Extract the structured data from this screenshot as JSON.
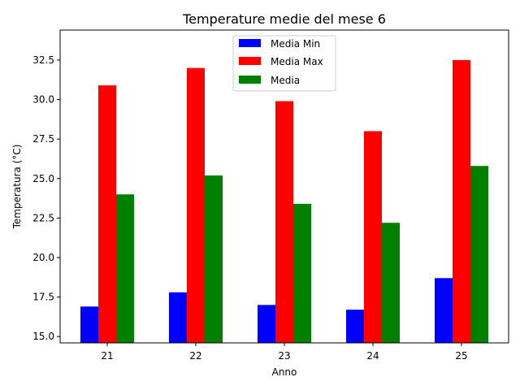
{
  "chart_data": {
    "type": "bar",
    "title": "Temperature medie del mese 6",
    "xlabel": "Anno",
    "ylabel": "Temperatura (°C)",
    "categories": [
      "21",
      "22",
      "23",
      "24",
      "25"
    ],
    "series": [
      {
        "name": "Media Min",
        "color": "#0000ff",
        "values": [
          16.9,
          17.8,
          17.0,
          16.7,
          18.7
        ]
      },
      {
        "name": "Media Max",
        "color": "#ff0000",
        "values": [
          30.9,
          32.0,
          29.9,
          28.0,
          32.5
        ]
      },
      {
        "name": "Media",
        "color": "#008000",
        "values": [
          24.0,
          25.2,
          23.4,
          22.2,
          25.8
        ]
      }
    ],
    "ylim": [
      14.6,
      34.4
    ],
    "yticks": [
      "15.0",
      "17.5",
      "20.0",
      "22.5",
      "25.0",
      "27.5",
      "30.0",
      "32.5"
    ],
    "grid": false,
    "legend": "upper center"
  }
}
